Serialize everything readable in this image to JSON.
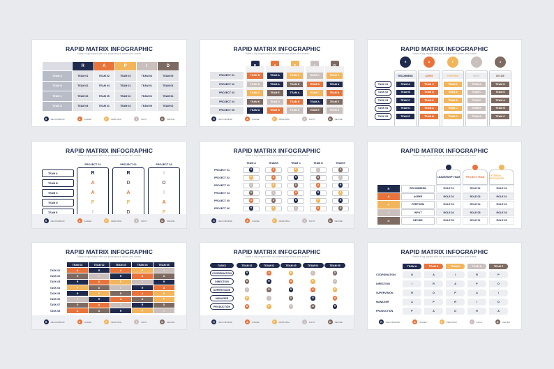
{
  "title": "RAPID MATRIX INFOGRAPHIC",
  "subtitle": "Make a big impact with our professional slides and charts",
  "colors": {
    "R": "#1f2a4d",
    "A": "#e8743b",
    "P": "#f2b55b",
    "I": "#c9bfbc",
    "D": "#7d6a61",
    "navy": "#1f2a4d",
    "light": "#dcdde2",
    "lighter": "#eceef1"
  },
  "letters": [
    "R",
    "A",
    "P",
    "I",
    "D"
  ],
  "legend": [
    "RECOMMEND",
    "AGREE",
    "PERFORM",
    "INPUT",
    "DECIDE"
  ],
  "s1": {
    "rows": [
      {
        "label": "TEAM A",
        "cells": [
          "TEAM 01",
          "TEAM 02",
          "TEAM 03",
          "TEAM 04",
          "TEAM 05"
        ]
      },
      {
        "label": "TEAM B",
        "cells": [
          "TEAM 02",
          "TEAM 04",
          "TEAM 01",
          "TEAM 01",
          "TEAM 03"
        ]
      },
      {
        "label": "TEAM C",
        "cells": [
          "TEAM 03",
          "TEAM 05",
          "TEAM 02",
          "TEAM 02",
          "TEAM 04"
        ]
      },
      {
        "label": "TEAM D",
        "cells": [
          "TEAM 04",
          "TEAM 01",
          "TEAM 03",
          "TEAM 05",
          "TEAM 02"
        ]
      }
    ]
  },
  "s2": {
    "rows": [
      {
        "label": "PROJECT 01",
        "cells": [
          "TEAM B",
          "TEAM A",
          "TEAM C",
          "TEAM D",
          "TEAM C"
        ]
      },
      {
        "label": "PROJECT 02",
        "cells": [
          "TEAM D",
          "TEAM A",
          "TEAM E",
          "TEAM B",
          "TEAM A"
        ]
      },
      {
        "label": "PROJECT 03",
        "cells": [
          "TEAM C",
          "TEAM E",
          "TEAM A",
          "TEAM C",
          "TEAM B"
        ]
      },
      {
        "label": "PROJECT 04",
        "cells": [
          "TEAM E",
          "TEAM D",
          "TEAM B",
          "TEAM A",
          "TEAM E"
        ]
      },
      {
        "label": "PROJECT 05",
        "cells": [
          "TEAM A",
          "TEAM B",
          "TEAM D",
          "TEAM E",
          "TEAM D"
        ]
      }
    ]
  },
  "s3": {
    "tasks": [
      "TASK 01",
      "TASK 02",
      "TASK 03",
      "TASK 04",
      "TASK 05"
    ],
    "rows": [
      [
        "TEAM A",
        "TEAM C",
        "TEAM E",
        "TEAM A",
        "TEAM D"
      ],
      [
        "TEAM B",
        "TEAM D",
        "TEAM A",
        "TEAM C",
        "TEAM E"
      ],
      [
        "TEAM C",
        "TEAM E",
        "TEAM B",
        "TEAM D",
        "TEAM A"
      ],
      [
        "TEAM D",
        "TEAM A",
        "TEAM C",
        "TEAM E",
        "TEAM B"
      ],
      [
        "TEAM E",
        "TEAM B",
        "TEAM D",
        "TEAM A",
        "TEAM C"
      ]
    ]
  },
  "s4": {
    "teams": [
      "TEAM A",
      "TEAM B",
      "TEAM C",
      "TEAM D",
      "TEAM E"
    ],
    "projects": [
      "PROJECT 01",
      "PROJECT 02",
      "PROJECT 03"
    ],
    "cols": [
      [
        "R",
        "A",
        "A",
        "P",
        "I"
      ],
      [
        "R",
        "D",
        "A",
        "P",
        "D"
      ],
      [
        "I",
        "D",
        "I",
        "A",
        "P"
      ]
    ]
  },
  "s5": {
    "headers": [
      "TEAM A",
      "TEAM B",
      "TEAM C",
      "TEAM D",
      "TEAM E"
    ],
    "rows": [
      {
        "label": "PROJECT 01",
        "cells": [
          "R",
          "A",
          "P",
          "I",
          "D"
        ]
      },
      {
        "label": "PROJECT 02",
        "cells": [
          "P",
          "A",
          "R",
          "D",
          "I"
        ]
      },
      {
        "label": "PROJECT 03",
        "cells": [
          "I",
          "P",
          "D",
          "A",
          "R"
        ]
      },
      {
        "label": "PROJECT 04",
        "cells": [
          "D",
          "I",
          "A",
          "R",
          "P"
        ]
      },
      {
        "label": "PROJECT 05",
        "cells": [
          "A",
          "D",
          "R",
          "P",
          "R"
        ]
      },
      {
        "label": "PROJECT 06",
        "cells": [
          "R",
          "P",
          "I",
          "A",
          "D"
        ]
      }
    ]
  },
  "s6": {
    "groups": [
      "LEADERSHIP TEAM",
      "PROJECT TEAM",
      "EXTERNAL RESOURCES"
    ],
    "rows": [
      {
        "label": "RECOMMEND",
        "cells": [
          "ROLE 01",
          "ROLE 02",
          "ROLE 04"
        ]
      },
      {
        "label": "AGREE",
        "cells": [
          "ROLE 02",
          "ROLE 03",
          "ROLE 01"
        ]
      },
      {
        "label": "PERFORM",
        "cells": [
          "ROLE 03",
          "ROLE 04",
          "ROLE 02"
        ]
      },
      {
        "label": "INPUT",
        "cells": [
          "ROLE 04",
          "ROLE 05",
          "ROLE 03"
        ]
      },
      {
        "label": "DECIDE",
        "cells": [
          "ROLE 05",
          "ROLE 01",
          "ROLE 05"
        ]
      }
    ]
  },
  "s7": {
    "headers": [
      "TEAM 01",
      "TEAM 02",
      "TEAM 03",
      "TEAM 04",
      "TEAM 05"
    ],
    "rows": [
      {
        "label": "TASK 01",
        "cells": [
          "A",
          "R",
          "A",
          "P",
          "I"
        ]
      },
      {
        "label": "TASK 02",
        "cells": [
          "D",
          "I",
          "R",
          "A",
          "D"
        ]
      },
      {
        "label": "TASK 03",
        "cells": [
          "R",
          "A",
          "P",
          "I",
          "R"
        ]
      },
      {
        "label": "TASK 04",
        "cells": [
          "P",
          "D",
          "I",
          "R",
          "A"
        ]
      },
      {
        "label": "TASK 05",
        "cells": [
          "R",
          "P",
          "D",
          "A",
          "P"
        ]
      },
      {
        "label": "TASK 06",
        "cells": [
          "I",
          "R",
          "A",
          "D",
          "P"
        ]
      },
      {
        "label": "TASK 07",
        "cells": [
          "D",
          "A",
          "I",
          "R",
          "D"
        ]
      },
      {
        "label": "TASK 08",
        "cells": [
          "A",
          "D",
          "R",
          "P",
          "I"
        ]
      }
    ]
  },
  "s8": {
    "headers": [
      "TASKS",
      "TEAM 01",
      "TEAM 02",
      "TEAM 03",
      "TEAM 04",
      "TEAM 05"
    ],
    "rows": [
      {
        "label": "COORDINATION",
        "cells": [
          "R",
          "A",
          "P",
          "I",
          "D"
        ]
      },
      {
        "label": "DIRECTION",
        "cells": [
          "D",
          "R",
          "A",
          "P",
          "I"
        ]
      },
      {
        "label": "SUPERVISION",
        "cells": [
          "I",
          "D",
          "R",
          "A",
          "P"
        ]
      },
      {
        "label": "MANAGER",
        "cells": [
          "P",
          "I",
          "D",
          "R",
          "A"
        ]
      },
      {
        "label": "PRODUCTION",
        "cells": [
          "A",
          "P",
          "I",
          "D",
          "R"
        ]
      }
    ]
  },
  "s9": {
    "headers": [
      "TEAM A",
      "TEAM B",
      "TEAM C",
      "TEAM D",
      "TEAM E"
    ],
    "rows": [
      {
        "label": "COORDINATION",
        "cells": [
          "D",
          "A",
          "I",
          "R",
          "P"
        ]
      },
      {
        "label": "DIRECTION",
        "cells": [
          "I",
          "R",
          "A",
          "P",
          "D"
        ]
      },
      {
        "label": "SUPERVISION",
        "cells": [
          "R",
          "D",
          "P",
          "A",
          "I"
        ]
      },
      {
        "label": "MANAGER",
        "cells": [
          "A",
          "P",
          "R",
          "I",
          "D"
        ]
      },
      {
        "label": "PRODUCTION",
        "cells": [
          "P",
          "A",
          "D",
          "R",
          "A"
        ]
      }
    ]
  }
}
